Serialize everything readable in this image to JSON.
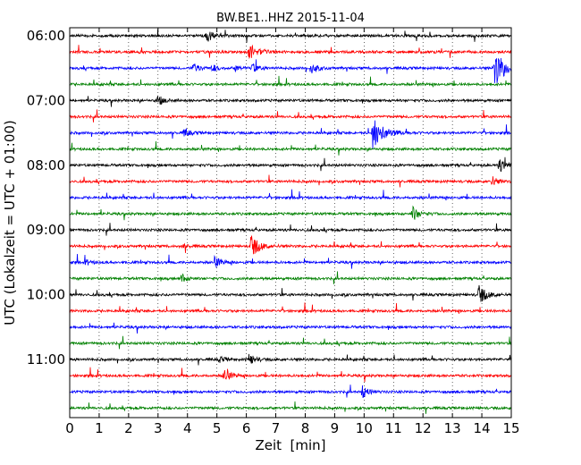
{
  "chart_data": {
    "type": "line",
    "subtype": "dayplot-seismogram",
    "title": "BW.BE1..HHZ 2015-11-04",
    "xlabel": "Zeit  [min]",
    "ylabel": "UTC (Lokalzeit = UTC + 01:00)",
    "xlim": [
      0,
      15
    ],
    "x_ticks": [
      "0",
      "1",
      "2",
      "3",
      "4",
      "5",
      "6",
      "7",
      "8",
      "9",
      "10",
      "11",
      "12",
      "13",
      "14",
      "15"
    ],
    "y_tick_labels": [
      "06:00",
      "07:00",
      "08:00",
      "09:00",
      "10:00",
      "11:00"
    ],
    "grid": true,
    "grid_axis": "x",
    "trace_interval_min": 15,
    "traces_per_hour": 4,
    "color_cycle": [
      "#000000",
      "#ff0000",
      "#0000ff",
      "#008000"
    ],
    "traces": [
      {
        "start": "06:00",
        "events": [
          {
            "t": 4.65,
            "amp": 0.85
          }
        ]
      },
      {
        "start": "06:15",
        "events": [
          {
            "t": 6.1,
            "amp": 1.0
          },
          {
            "t": 6.55,
            "amp": 0.3
          }
        ]
      },
      {
        "start": "06:30",
        "events": [
          {
            "t": 4.2,
            "amp": 0.6
          },
          {
            "t": 4.85,
            "amp": 0.4
          },
          {
            "t": 5.65,
            "amp": 0.35
          },
          {
            "t": 6.2,
            "amp": 0.55
          },
          {
            "t": 8.2,
            "amp": 0.65
          },
          {
            "t": 14.45,
            "amp": 2.2
          }
        ]
      },
      {
        "start": "06:45",
        "events": []
      },
      {
        "start": "07:00",
        "events": [
          {
            "t": 3.0,
            "amp": 0.6
          }
        ]
      },
      {
        "start": "07:15",
        "events": []
      },
      {
        "start": "07:30",
        "events": [
          {
            "t": 3.9,
            "amp": 0.5
          },
          {
            "t": 10.3,
            "amp": 2.0
          }
        ]
      },
      {
        "start": "07:45",
        "events": []
      },
      {
        "start": "08:00",
        "events": [
          {
            "t": 14.6,
            "amp": 0.85
          }
        ]
      },
      {
        "start": "08:15",
        "events": [
          {
            "t": 14.35,
            "amp": 0.6
          }
        ]
      },
      {
        "start": "08:30",
        "events": []
      },
      {
        "start": "08:45",
        "events": [
          {
            "t": 11.65,
            "amp": 0.85
          }
        ]
      },
      {
        "start": "09:00",
        "events": []
      },
      {
        "start": "09:15",
        "events": [
          {
            "t": 6.15,
            "amp": 1.45
          },
          {
            "t": 3.85,
            "amp": 0.3
          }
        ]
      },
      {
        "start": "09:30",
        "events": [
          {
            "t": 0.55,
            "amp": 0.3
          },
          {
            "t": 4.95,
            "amp": 0.65
          }
        ]
      },
      {
        "start": "09:45",
        "events": [
          {
            "t": 3.8,
            "amp": 0.55
          }
        ]
      },
      {
        "start": "10:00",
        "events": [
          {
            "t": 13.9,
            "amp": 1.2
          }
        ]
      },
      {
        "start": "10:15",
        "events": []
      },
      {
        "start": "10:30",
        "events": []
      },
      {
        "start": "10:45",
        "events": []
      },
      {
        "start": "11:00",
        "events": [
          {
            "t": 6.1,
            "amp": 0.65
          },
          {
            "t": 5.1,
            "amp": 0.35
          }
        ]
      },
      {
        "start": "11:15",
        "events": [
          {
            "t": 5.25,
            "amp": 0.8
          }
        ]
      },
      {
        "start": "11:30",
        "events": [
          {
            "t": 9.95,
            "amp": 0.75
          }
        ]
      },
      {
        "start": "11:45",
        "events": []
      }
    ]
  }
}
